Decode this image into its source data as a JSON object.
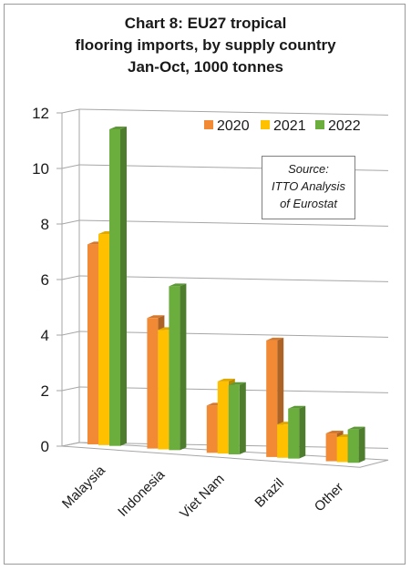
{
  "chart_data": {
    "type": "bar",
    "title_lines": [
      "Chart 8: EU27 tropical",
      "flooring imports, by supply country",
      "Jan-Oct, 1000 tonnes"
    ],
    "categories": [
      "Malaysia",
      "Indonesia",
      "Viet Nam",
      "Brazil",
      "Other"
    ],
    "series": [
      {
        "name": "2020",
        "values": [
          7.2,
          4.7,
          1.7,
          4.2,
          1.0
        ],
        "color": "#f28a35"
      },
      {
        "name": "2021",
        "values": [
          7.6,
          4.3,
          2.6,
          1.2,
          0.9
        ],
        "color": "#ffc000"
      },
      {
        "name": "2022",
        "values": [
          11.4,
          5.9,
          2.5,
          1.8,
          1.2
        ],
        "color": "#6bae3e"
      }
    ],
    "yticks": [
      "0",
      "2",
      "4",
      "6",
      "8",
      "10",
      "12"
    ],
    "ylim": [
      0,
      12
    ],
    "grid": true,
    "legend": "top-right",
    "source_lines": [
      "Source:",
      "ITTO Analysis",
      "of Eurostat"
    ]
  }
}
